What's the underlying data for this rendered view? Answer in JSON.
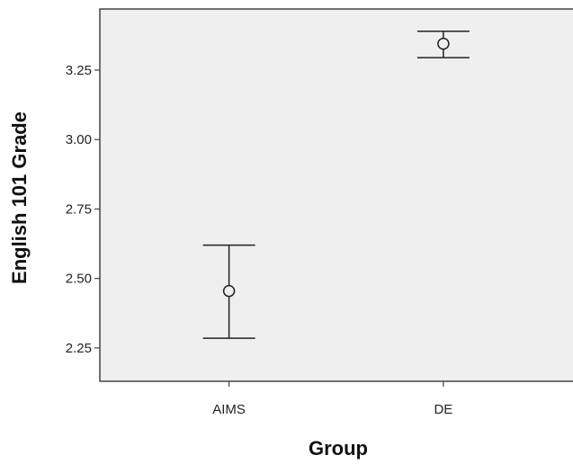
{
  "chart_data": {
    "type": "scatter",
    "subtype": "error-bar",
    "title": "",
    "xlabel": "Group",
    "ylabel": "English 101 Grade",
    "categories": [
      "AIMS",
      "DE"
    ],
    "series": [
      {
        "mean": [
          2.455,
          3.345
        ],
        "lower": [
          2.285,
          3.295
        ],
        "upper": [
          2.62,
          3.39
        ]
      }
    ],
    "yticks": [
      "2.25",
      "2.50",
      "2.75",
      "3.00",
      "3.25"
    ],
    "ylim": [
      2.13,
      3.47
    ],
    "grid": false,
    "legend": "none",
    "colors": {
      "plot_background": "#efefef",
      "page_background": "#ffffff",
      "axis": "#444444",
      "marks": "#222222"
    }
  }
}
